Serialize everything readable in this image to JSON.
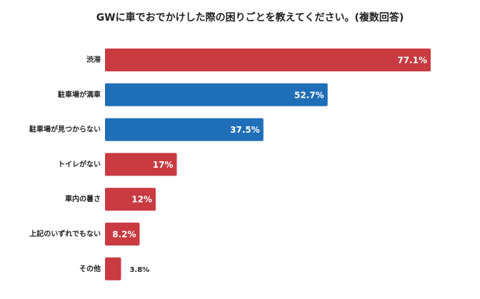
{
  "chart_data": {
    "type": "bar",
    "orientation": "horizontal",
    "title": "GWに車でおでかけした際の困りごとを教えてください。(複数回答)",
    "categories": [
      "渋滞",
      "駐車場が満車",
      "駐車場が見つからない",
      "トイレがない",
      "車内の暑さ",
      "上記のいずれでもない",
      "その他"
    ],
    "values": [
      77.1,
      52.7,
      37.5,
      17,
      12,
      8.2,
      3.8
    ],
    "value_labels": [
      "77.1%",
      "52.7%",
      "37.5%",
      "17%",
      "12%",
      "8.2%",
      "3.8%"
    ],
    "colors": [
      "#c93a41",
      "#1f6eb8",
      "#1f6eb8",
      "#c93a41",
      "#c93a41",
      "#c93a41",
      "#c93a41"
    ]
  }
}
